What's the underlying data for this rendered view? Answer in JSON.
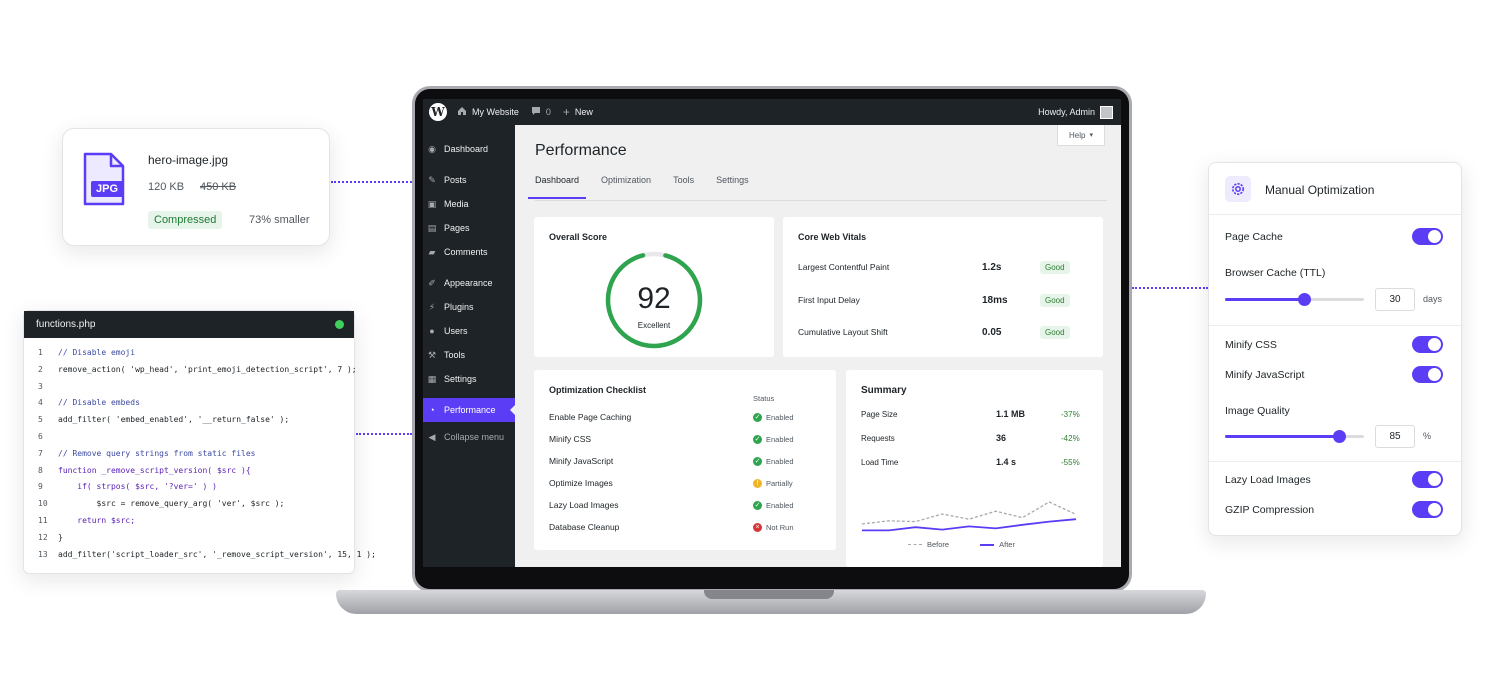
{
  "file_card": {
    "file_type_label": "JPG",
    "file_name": "hero-image.jpg",
    "new_size": "120 KB",
    "old_size": "450 KB",
    "badge": "Compressed",
    "reduction": "73% smaller"
  },
  "code_card": {
    "title": "functions.php",
    "lines": [
      {
        "n": "1",
        "text": "// Disable emoji"
      },
      {
        "n": "2",
        "text": "remove_action( 'wp_head', 'print_emoji_detection_script', 7 );"
      },
      {
        "n": "3",
        "text": ""
      },
      {
        "n": "4",
        "text": "// Disable embeds"
      },
      {
        "n": "5",
        "text": "add_filter( 'embed_enabled', '__return_false' );"
      },
      {
        "n": "6",
        "text": ""
      },
      {
        "n": "7",
        "text": "// Remove query strings from static files"
      },
      {
        "n": "8",
        "text": "function _remove_script_version( $src ){"
      },
      {
        "n": "9",
        "text": "    if( strpos( $src, '?ver=' ) )"
      },
      {
        "n": "10",
        "text": "        $src = remove_query_arg( 'ver', $src );"
      },
      {
        "n": "11",
        "text": "    return $src;"
      },
      {
        "n": "12",
        "text": "}"
      },
      {
        "n": "13",
        "text": "add_filter('script_loader_src', '_remove_script_version', 15, 1 );"
      }
    ]
  },
  "adminbar": {
    "site_name": "My Website",
    "comments_count": "0",
    "new_label": "New",
    "greeting": "Howdy, Admin"
  },
  "sidebar": {
    "items": [
      {
        "label": "Dashboard",
        "icon": "dashboard-icon"
      },
      {
        "label": "Posts",
        "icon": "pin-icon"
      },
      {
        "label": "Media",
        "icon": "media-icon"
      },
      {
        "label": "Pages",
        "icon": "pages-icon"
      },
      {
        "label": "Comments",
        "icon": "comment-icon"
      },
      {
        "label": "Appearance",
        "icon": "brush-icon"
      },
      {
        "label": "Plugins",
        "icon": "plugin-icon"
      },
      {
        "label": "Users",
        "icon": "user-icon"
      },
      {
        "label": "Tools",
        "icon": "wrench-icon"
      },
      {
        "label": "Settings",
        "icon": "settings-icon"
      },
      {
        "label": "Performance",
        "icon": "gauge-icon"
      },
      {
        "label": "Collapse menu",
        "icon": "collapse-icon"
      }
    ]
  },
  "main": {
    "help_label": "Help",
    "title": "Performance",
    "tabs": [
      "Dashboard",
      "Optimization",
      "Tools",
      "Settings"
    ],
    "score": {
      "title": "Overall Score",
      "value": "92",
      "label": "Excellent",
      "fraction": 0.92
    },
    "cwv": {
      "title": "Core Web Vitals",
      "rows": [
        {
          "name": "Largest Contentful Paint",
          "value": "1.2s",
          "status": "Good"
        },
        {
          "name": "First Input Delay",
          "value": "18ms",
          "status": "Good"
        },
        {
          "name": "Cumulative Layout Shift",
          "value": "0.05",
          "status": "Good"
        }
      ]
    },
    "checklist": {
      "title": "Optimization Checklist",
      "status_header": "Status",
      "rows": [
        {
          "name": "Enable Page Caching",
          "status": "Enabled",
          "color": "#2ea44f"
        },
        {
          "name": "Minify CSS",
          "status": "Enabled",
          "color": "#2ea44f"
        },
        {
          "name": "Minify JavaScript",
          "status": "Enabled",
          "color": "#2ea44f"
        },
        {
          "name": "Optimize Images",
          "status": "Partially",
          "color": "#f0b429"
        },
        {
          "name": "Lazy Load Images",
          "status": "Enabled",
          "color": "#2ea44f"
        },
        {
          "name": "Database Cleanup",
          "status": "Not Run",
          "color": "#d63638"
        }
      ]
    },
    "summary": {
      "title": "Summary",
      "rows": [
        {
          "name": "Page Size",
          "value": "1.1 MB",
          "change": "-37%"
        },
        {
          "name": "Requests",
          "value": "36",
          "change": "-42%"
        },
        {
          "name": "Load Time",
          "value": "1.4 s",
          "change": "-55%"
        }
      ],
      "legend_before": "Before",
      "legend_after": "After",
      "series_before": [
        3,
        3.8,
        3.6,
        5.5,
        4.2,
        6.2,
        4.6,
        8.5,
        5.4
      ],
      "series_after": [
        1.4,
        1.4,
        2.2,
        1.6,
        2.4,
        1.9,
        2.8,
        3.6,
        4.2
      ]
    }
  },
  "manual": {
    "title": "Manual Optimization",
    "page_cache": "Page Cache",
    "browser_cache": "Browser Cache (TTL)",
    "browser_cache_value": "30",
    "browser_cache_unit": "days",
    "browser_cache_fraction": 0.57,
    "minify_css": "Minify CSS",
    "minify_js": "Minify JavaScript",
    "image_quality": "Image Quality",
    "image_quality_value": "85",
    "image_quality_unit": "%",
    "image_quality_fraction": 0.82,
    "lazy_load": "Lazy Load Images",
    "gzip": "GZIP Compression",
    "accent": "#5b3df5"
  }
}
